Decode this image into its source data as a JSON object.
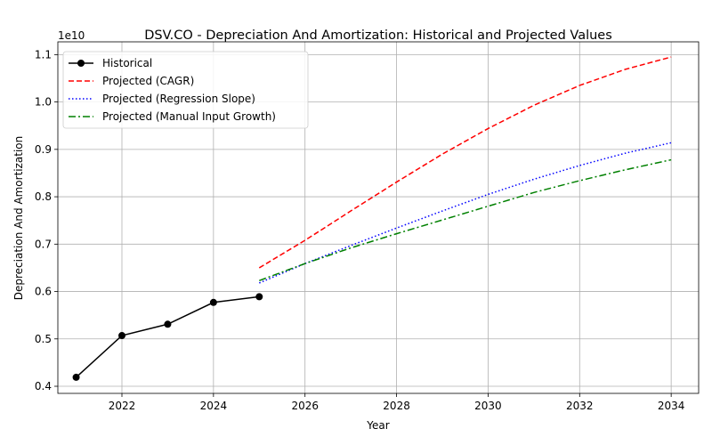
{
  "chart_data": {
    "type": "line",
    "title": "DSV.CO - Depreciation And Amortization: Historical and Projected Values",
    "xlabel": "Year",
    "ylabel": "Depreciation And Amortization",
    "offset_text": "1e10",
    "xlim": [
      2020.6,
      2034.6
    ],
    "ylim": [
      0.385,
      1.127
    ],
    "grid": true,
    "legend_position": "top-left",
    "x_ticks": [
      2022,
      2024,
      2026,
      2028,
      2030,
      2032,
      2034
    ],
    "y_ticks": [
      0.4,
      0.5,
      0.6,
      0.7,
      0.8,
      0.9,
      1.0,
      1.1
    ],
    "series": [
      {
        "name": "Historical",
        "style": "solid-marker",
        "color": "#000000",
        "x": [
          2021,
          2022,
          2023,
          2024,
          2025
        ],
        "values": [
          0.419,
          0.507,
          0.531,
          0.577,
          0.589
        ]
      },
      {
        "name": "Projected (CAGR)",
        "style": "dashed",
        "color": "#ff0000",
        "x": [
          2025,
          2026,
          2027,
          2028,
          2029,
          2030,
          2031,
          2032,
          2033,
          2034
        ],
        "values": [
          0.65,
          0.708,
          0.77,
          0.831,
          0.89,
          0.944,
          0.993,
          1.035,
          1.069,
          1.095
        ]
      },
      {
        "name": "Projected (Regression Slope)",
        "style": "dotted",
        "color": "#0000ff",
        "x": [
          2025,
          2026,
          2027,
          2028,
          2029,
          2030,
          2031,
          2032,
          2033,
          2034
        ],
        "values": [
          0.618,
          0.659,
          0.697,
          0.734,
          0.77,
          0.805,
          0.837,
          0.866,
          0.892,
          0.914
        ]
      },
      {
        "name": "Projected (Manual Input Growth)",
        "style": "dashdot",
        "color": "#008000",
        "x": [
          2025,
          2026,
          2027,
          2028,
          2029,
          2030,
          2031,
          2032,
          2033,
          2034
        ],
        "values": [
          0.623,
          0.659,
          0.692,
          0.722,
          0.751,
          0.78,
          0.809,
          0.834,
          0.857,
          0.878
        ]
      }
    ]
  }
}
